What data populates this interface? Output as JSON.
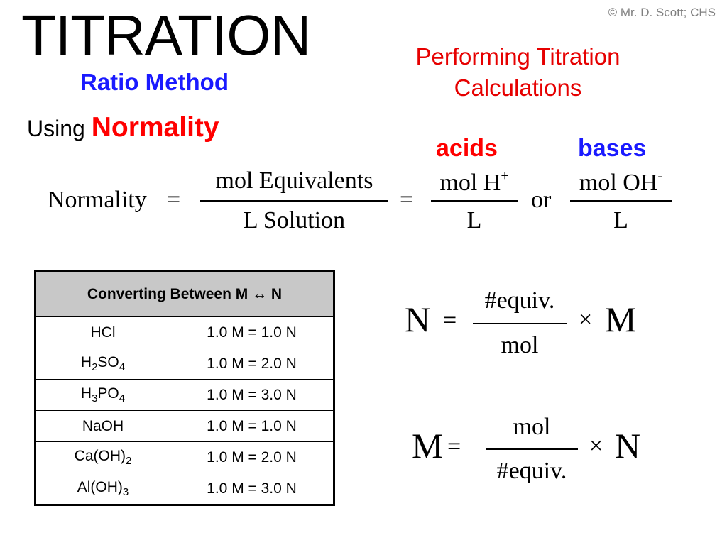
{
  "copyright": "© Mr. D. Scott; CHS",
  "title": "TITRATION",
  "subtitle": "Ratio Method",
  "headline": {
    "line1": "Performing Titration",
    "line2": "Calculations"
  },
  "using": {
    "prefix": "Using",
    "emphasis": "Normality"
  },
  "labels": {
    "acids": "acids",
    "bases": "bases"
  },
  "formula": {
    "lhs": "Normality",
    "equals": "=",
    "frac1_num": "mol Equivalents",
    "frac1_den": "L Solution",
    "frac2_num": "mol H",
    "frac2_num_sup": "+",
    "frac2_den": "L",
    "or": "or",
    "frac3_num": "mol OH",
    "frac3_num_sup": "-",
    "frac3_den": "L"
  },
  "table": {
    "header": "Converting Between  M ↔ N",
    "rows": [
      {
        "compound": [
          {
            "t": "HCl"
          }
        ],
        "conversion": "1.0 M = 1.0 N"
      },
      {
        "compound": [
          {
            "t": "H"
          },
          {
            "t": "2",
            "sub": true
          },
          {
            "t": "SO"
          },
          {
            "t": "4",
            "sub": true
          }
        ],
        "conversion": "1.0 M = 2.0 N"
      },
      {
        "compound": [
          {
            "t": "H"
          },
          {
            "t": "3",
            "sub": true
          },
          {
            "t": "PO"
          },
          {
            "t": "4",
            "sub": true
          }
        ],
        "conversion": "1.0 M = 3.0 N"
      },
      {
        "compound": [
          {
            "t": "NaOH"
          }
        ],
        "conversion": "1.0 M = 1.0 N"
      },
      {
        "compound": [
          {
            "t": "Ca(OH)"
          },
          {
            "t": "2",
            "sub": true
          }
        ],
        "conversion": "1.0 M = 2.0 N"
      },
      {
        "compound": [
          {
            "t": "Al(OH)"
          },
          {
            "t": "3",
            "sub": true
          }
        ],
        "conversion": "1.0 M = 3.0 N"
      }
    ]
  },
  "formula_n": {
    "lhs": "N",
    "equals": "=",
    "num": "#equiv.",
    "den": "mol",
    "times": "×",
    "rhs": "M"
  },
  "formula_m": {
    "lhs": "M",
    "equals": "=",
    "num": "mol",
    "den": "#equiv.",
    "times": "×",
    "rhs": "N"
  },
  "colors": {
    "red": "#ff0000",
    "blue": "#1a1aff",
    "header_gray": "#c8c8c8",
    "copyright_gray": "#7f7f7f"
  }
}
